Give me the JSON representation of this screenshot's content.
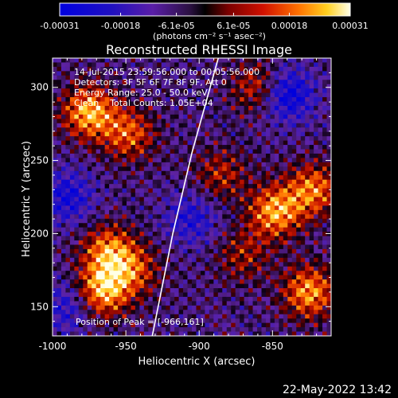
{
  "colorbar": {
    "tick_labels": [
      "-0.00031",
      "-0.00018",
      "-6.1e-05",
      "6.1e-05",
      "0.00018",
      "0.00031"
    ],
    "tick_values": [
      -0.00031,
      -0.00018,
      -6.1e-05,
      6.1e-05,
      0.00018,
      0.00031
    ],
    "unit_label": "(photons cm⁻² s⁻¹ asec⁻²)",
    "range": [
      -0.00031,
      0.00031
    ]
  },
  "chart_data": {
    "type": "heatmap",
    "title": "Reconstructed RHESSI Image",
    "xlabel": "Heliocentric X (arcsec)",
    "ylabel": "Heliocentric Y (arcsec)",
    "xlim": [
      -1000,
      -810
    ],
    "ylim": [
      130,
      320
    ],
    "x_ticks": [
      -1000,
      -950,
      -900,
      -850
    ],
    "y_ticks": [
      150,
      200,
      250,
      300
    ],
    "x_tick_labels": [
      "-1000",
      "-950",
      "-900",
      "-850"
    ],
    "y_tick_labels": [
      "150",
      "200",
      "250",
      "300"
    ],
    "annotations": [
      "14-Jul-2015 23:59:56.000 to 00:05:56.000",
      "Detectors: 3F 5F 6F 7F 8F 9F, Att 0",
      "Energy Range: 25.0 - 50.0 keV",
      "Clean    Total Counts: 1.05E+04"
    ],
    "peak_label": "Position of Peak = [-966,161]",
    "peak_position": [
      -966,
      161
    ],
    "limb_line": [
      [
        -932,
        130
      ],
      [
        -918,
        200
      ],
      [
        -905,
        255
      ],
      [
        -887,
        320
      ]
    ],
    "bright_regions": [
      {
        "x": -975,
        "y": 283,
        "level": 1.0
      },
      {
        "x": -948,
        "y": 268,
        "level": 0.7
      },
      {
        "x": -962,
        "y": 188,
        "level": 0.8
      },
      {
        "x": -966,
        "y": 161,
        "level": 1.0
      },
      {
        "x": -945,
        "y": 175,
        "level": 0.6
      },
      {
        "x": -848,
        "y": 215,
        "level": 0.95
      },
      {
        "x": -822,
        "y": 230,
        "level": 0.8
      },
      {
        "x": -825,
        "y": 160,
        "level": 0.9
      },
      {
        "x": -860,
        "y": 300,
        "level": 0.6
      },
      {
        "x": -885,
        "y": 240,
        "level": 0.5
      },
      {
        "x": -870,
        "y": 185,
        "level": 0.45
      }
    ],
    "dark_regions": [
      {
        "x": -840,
        "y": 295,
        "level": -0.8
      },
      {
        "x": -990,
        "y": 225,
        "level": -0.6
      },
      {
        "x": -905,
        "y": 210,
        "level": -0.5
      },
      {
        "x": -990,
        "y": 150,
        "level": -0.5
      }
    ]
  },
  "footer": {
    "datestamp": "22-May-2022 13:42"
  },
  "colors": {
    "background": "#000000",
    "text": "#ffffff",
    "frame": "#ffffff"
  }
}
